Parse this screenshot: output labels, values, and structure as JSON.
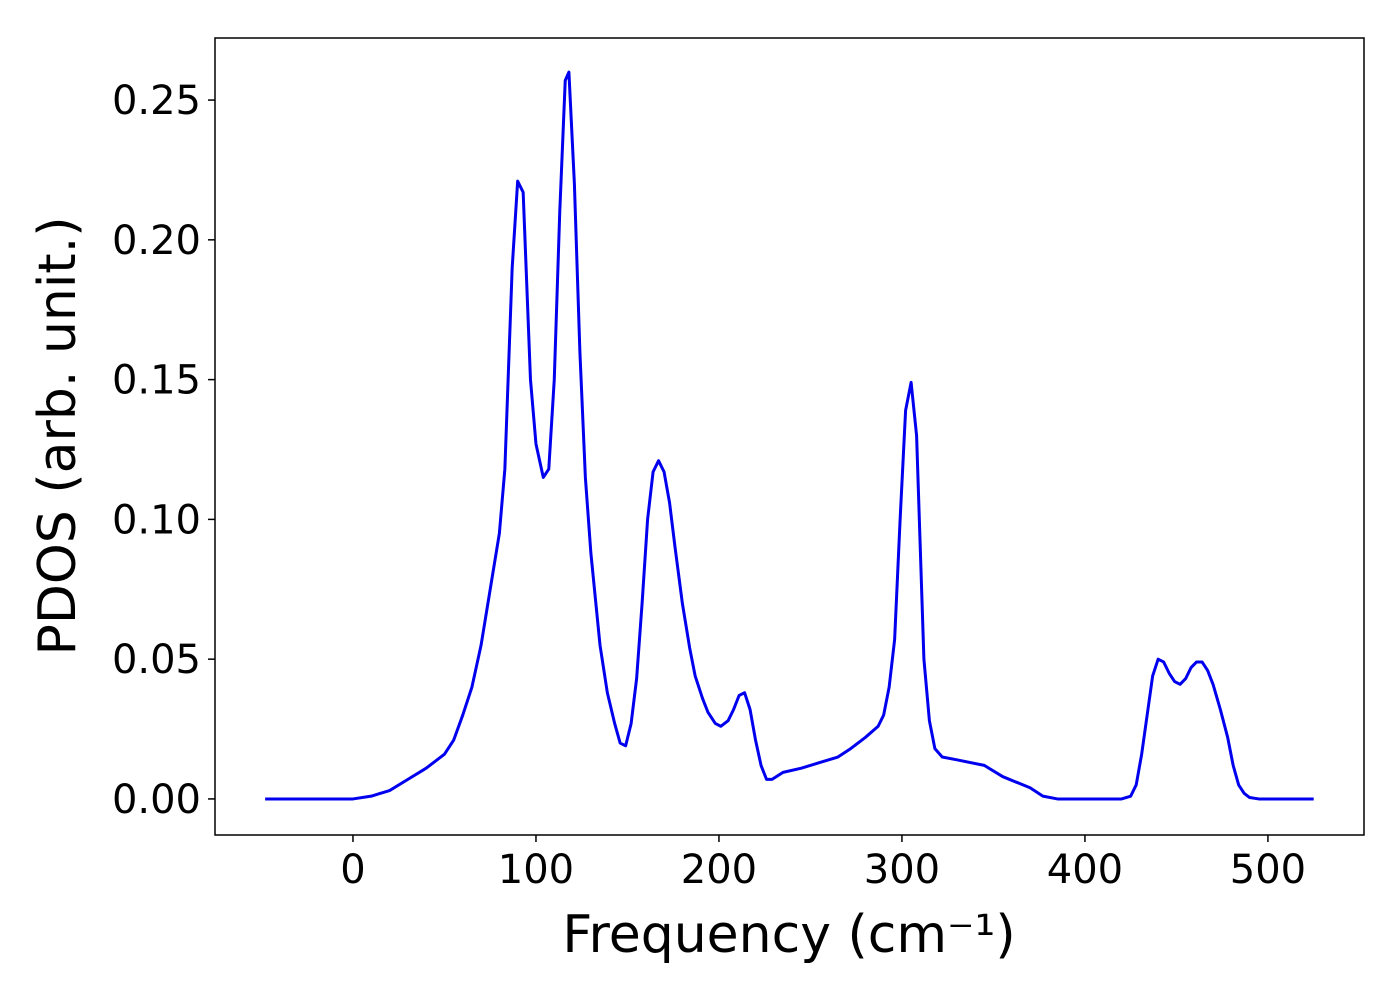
{
  "chart_data": {
    "type": "line",
    "xlabel": "Frequency (cm⁻¹)",
    "ylabel": "PDOS (arb. unit.)",
    "xlim": [
      -75.4,
      552.5
    ],
    "ylim": [
      -0.0129,
      0.2722
    ],
    "xticks": [
      0,
      100,
      200,
      300,
      400,
      500
    ],
    "yticks": [
      {
        "value": 0,
        "label": "0.00"
      },
      {
        "value": 0.05,
        "label": "0.05"
      },
      {
        "value": 0.1,
        "label": "0.10"
      },
      {
        "value": 0.15,
        "label": "0.15"
      },
      {
        "value": 0.2,
        "label": "0.20"
      },
      {
        "value": 0.25,
        "label": "0.25"
      }
    ],
    "x": [
      -48,
      0,
      10,
      20,
      30,
      40,
      50,
      55,
      60,
      65,
      70,
      75,
      80,
      83,
      87,
      90,
      93,
      97,
      100,
      104,
      107,
      110,
      113,
      116,
      118,
      121,
      124,
      127,
      130,
      135,
      139,
      143,
      146,
      149,
      152,
      155,
      158,
      161,
      164,
      167,
      170,
      173,
      176,
      180,
      184,
      187,
      191,
      194,
      198,
      201,
      205,
      208,
      211,
      214,
      217,
      220,
      223,
      226,
      229,
      235,
      245,
      255,
      265,
      272,
      280,
      287,
      290,
      293,
      296,
      299,
      302,
      305,
      308,
      312,
      315,
      318,
      322,
      330,
      345,
      355,
      370,
      377,
      385,
      420,
      425,
      428,
      431,
      434,
      437,
      440,
      443,
      446,
      449,
      452,
      455,
      458,
      461,
      464,
      467,
      470,
      474,
      478,
      481,
      484,
      487,
      490,
      495,
      525
    ],
    "series": [
      {
        "name": "PDOS",
        "color": "#0000ee",
        "values": [
          0,
          0,
          0.001,
          0.003,
          0.007,
          0.011,
          0.016,
          0.021,
          0.03,
          0.04,
          0.055,
          0.075,
          0.095,
          0.118,
          0.19,
          0.221,
          0.217,
          0.15,
          0.127,
          0.115,
          0.118,
          0.15,
          0.21,
          0.257,
          0.26,
          0.22,
          0.16,
          0.115,
          0.088,
          0.055,
          0.038,
          0.027,
          0.02,
          0.019,
          0.027,
          0.043,
          0.07,
          0.1,
          0.117,
          0.121,
          0.117,
          0.106,
          0.09,
          0.07,
          0.054,
          0.044,
          0.036,
          0.031,
          0.027,
          0.026,
          0.028,
          0.032,
          0.037,
          0.038,
          0.032,
          0.021,
          0.012,
          0.007,
          0.007,
          0.0095,
          0.011,
          0.013,
          0.015,
          0.018,
          0.022,
          0.026,
          0.03,
          0.04,
          0.057,
          0.1,
          0.139,
          0.149,
          0.13,
          0.05,
          0.028,
          0.018,
          0.015,
          0.014,
          0.012,
          0.008,
          0.004,
          0.001,
          0,
          0,
          0.001,
          0.005,
          0.016,
          0.03,
          0.044,
          0.05,
          0.049,
          0.045,
          0.042,
          0.041,
          0.043,
          0.047,
          0.049,
          0.049,
          0.046,
          0.041,
          0.032,
          0.022,
          0.012,
          0.005,
          0.002,
          0.0005,
          0,
          0
        ]
      }
    ]
  }
}
